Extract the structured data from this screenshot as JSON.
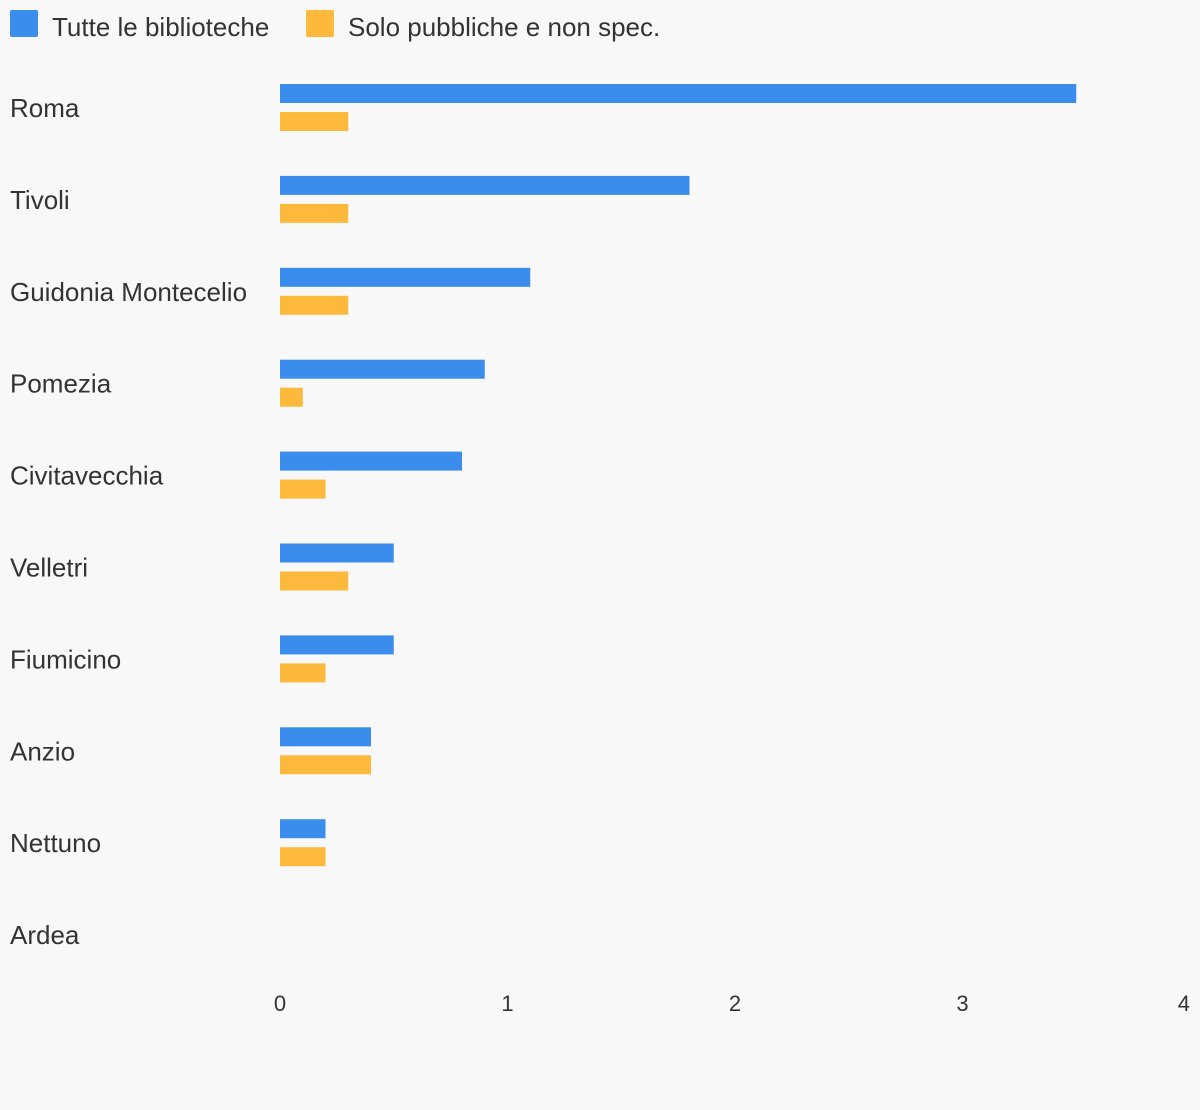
{
  "chart_data": {
    "type": "bar",
    "orientation": "horizontal",
    "categories": [
      "Roma",
      "Tivoli",
      "Guidonia Montecelio",
      "Pomezia",
      "Civitavecchia",
      "Velletri",
      "Fiumicino",
      "Anzio",
      "Nettuno",
      "Ardea"
    ],
    "series": [
      {
        "name": "Tutte le biblioteche",
        "color": "#3a8ded",
        "values": [
          3.5,
          1.8,
          1.1,
          0.9,
          0.8,
          0.5,
          0.5,
          0.4,
          0.2,
          0
        ]
      },
      {
        "name": "Solo pubbliche e non spec.",
        "color": "#fdb93c",
        "values": [
          0.3,
          0.3,
          0.3,
          0.1,
          0.2,
          0.3,
          0.2,
          0.4,
          0.2,
          0
        ]
      }
    ],
    "xlim": [
      0,
      4
    ],
    "xticks": [
      0,
      1,
      2,
      3,
      4
    ],
    "grid": false,
    "legend": "top-left"
  }
}
